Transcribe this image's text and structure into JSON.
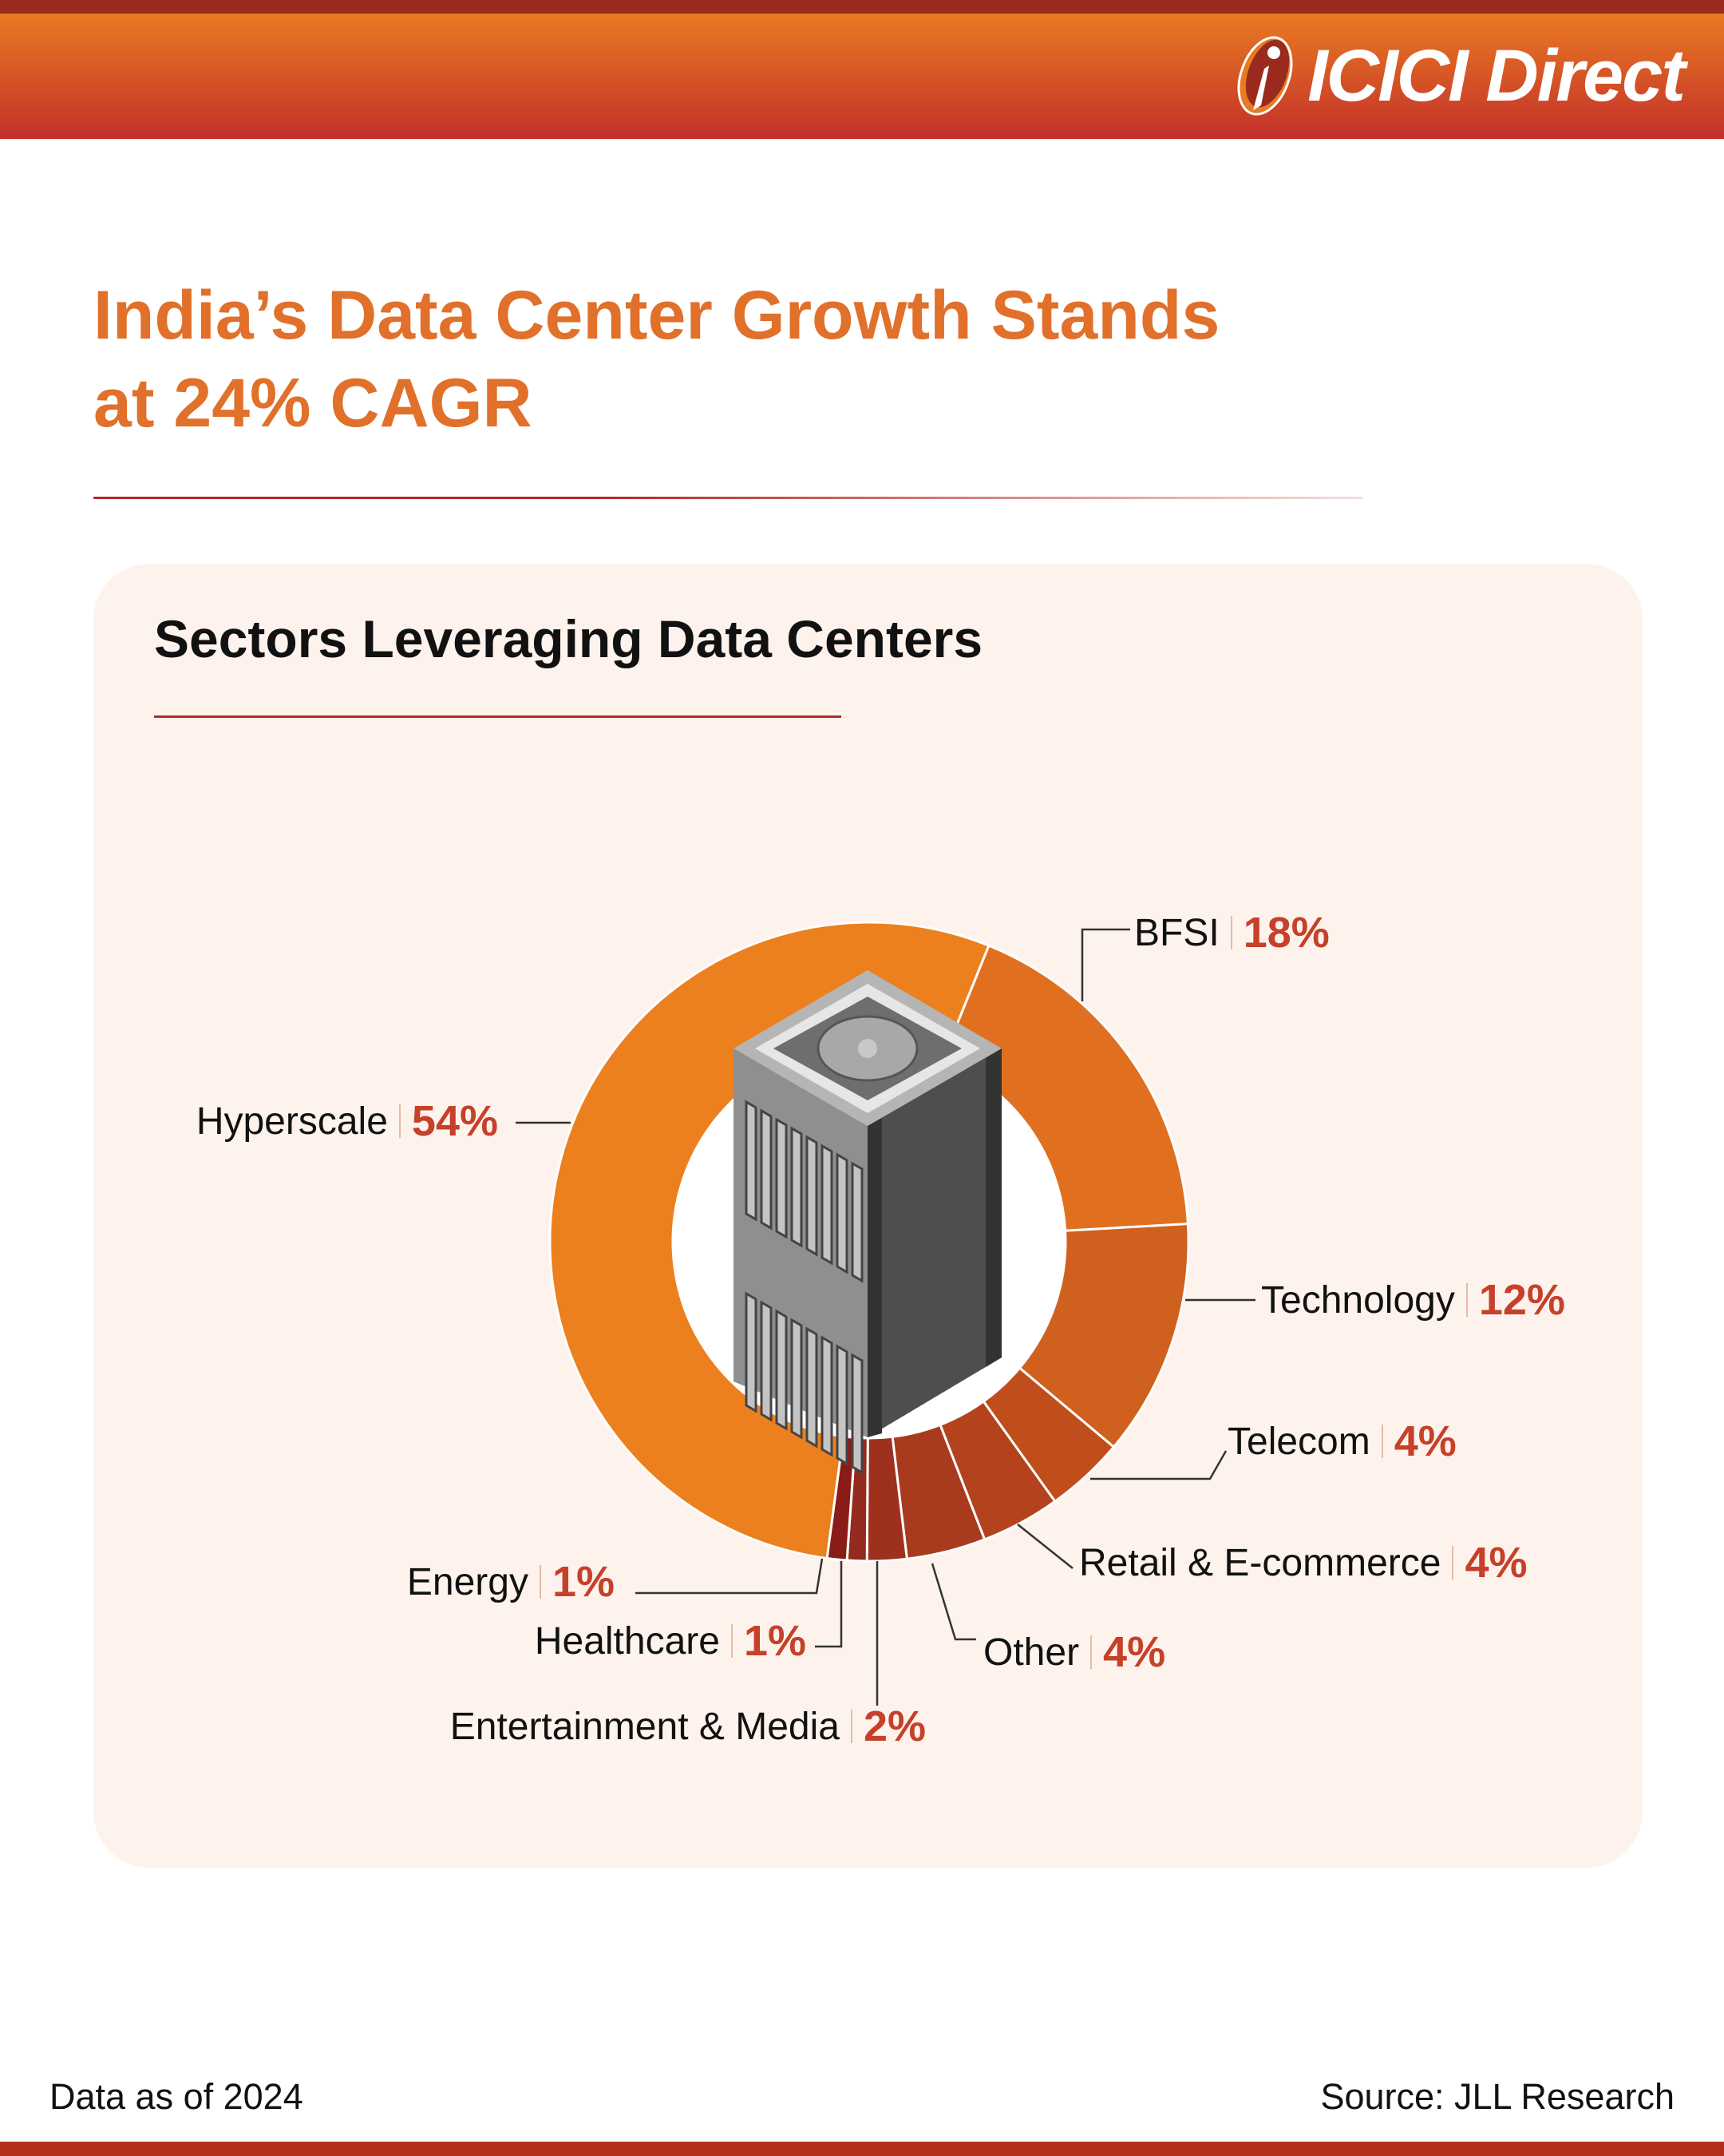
{
  "brand": {
    "logo_text": "ICICI Direct",
    "logo_glyph": "i"
  },
  "header": {
    "title_line1": "India’s Data Center Growth Stands",
    "title_line2": "at 24% CAGR"
  },
  "card": {
    "subtitle": "Sectors Leveraging Data Centers"
  },
  "footer": {
    "data_note": "Data as of 2024",
    "source": "Source: JLL Research"
  },
  "chart_data": {
    "type": "pie",
    "variant": "donut",
    "title": "Sectors Leveraging Data Centers",
    "unit": "%",
    "categories": [
      "BFSI",
      "Technology",
      "Telecom",
      "Retail & E-commerce",
      "Other",
      "Entertainment & Media",
      "Healthcare",
      "Energy",
      "Hyperscale"
    ],
    "values": [
      18,
      12,
      4,
      4,
      4,
      2,
      1,
      1,
      54
    ],
    "labels": [
      "18%",
      "12%",
      "4%",
      "4%",
      "4%",
      "2%",
      "1%",
      "1%",
      "54%"
    ],
    "colors": [
      "#E07020",
      "#D0601E",
      "#C04E1C",
      "#B3421D",
      "#A83A1E",
      "#9E301E",
      "#952A1E",
      "#8A1C18",
      "#EC801E"
    ],
    "center_icon": "server-rack-icon"
  }
}
